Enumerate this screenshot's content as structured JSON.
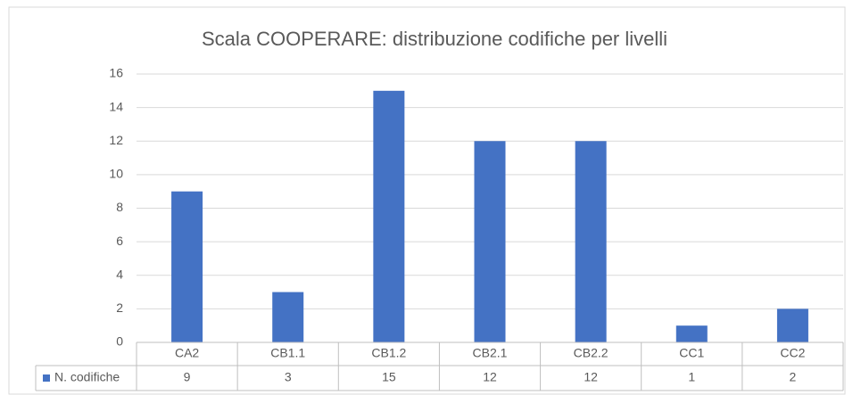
{
  "chart_data": {
    "type": "bar",
    "title": "Scala COOPERARE: distribuzione codifiche per livelli",
    "categories": [
      "CA2",
      "CB1.1",
      "CB1.2",
      "CB2.1",
      "CB2.2",
      "CC1",
      "CC2"
    ],
    "series": [
      {
        "name": "N. codifiche",
        "color": "#4472c4",
        "values": [
          9,
          3,
          15,
          12,
          12,
          1,
          2
        ]
      }
    ],
    "ylim": [
      0,
      16
    ],
    "yticks": [
      0,
      2,
      4,
      6,
      8,
      10,
      12,
      14,
      16
    ],
    "grid": true,
    "data_table": true
  }
}
